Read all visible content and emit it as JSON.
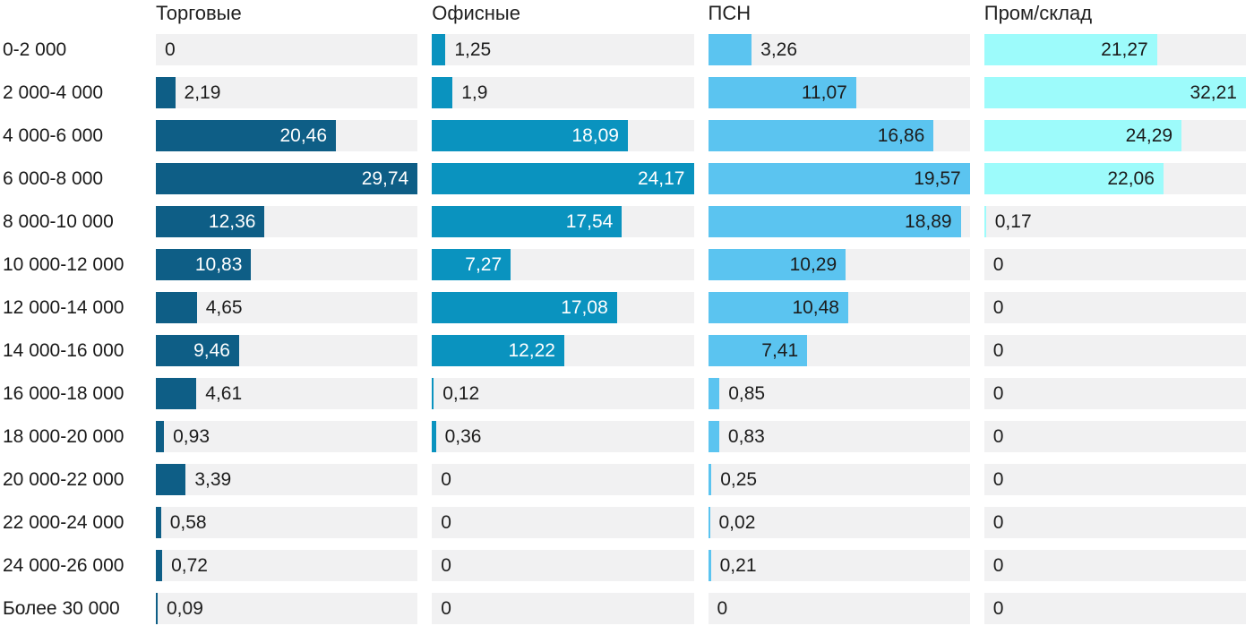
{
  "chart_data": {
    "type": "bar",
    "orientation": "horizontal",
    "title": "",
    "xlabel": "",
    "ylabel": "",
    "grid": false,
    "legend_position": "column-headers",
    "scale_note": "each column scaled so its own max value fills the full track width",
    "track_color": "#f1f1f2",
    "text_color": "#1c1c1c",
    "header_color": "#1f1f1f",
    "categories": [
      "0-2 000",
      "2 000-4 000",
      "4 000-6 000",
      "6 000-8 000",
      "8 000-10 000",
      "10 000-12 000",
      "12 000-14 000",
      "14 000-16 000",
      "16 000-18 000",
      "18 000-20 000",
      "20 000-22 000",
      "22 000-24 000",
      "24 000-26 000",
      "Более 30 000"
    ],
    "series": [
      {
        "name": "Торговые",
        "color": "#0e5e86",
        "inside_label_color": "#ffffff",
        "max": 29.74,
        "values": [
          0,
          2.19,
          20.46,
          29.74,
          12.36,
          10.83,
          4.65,
          9.46,
          4.61,
          0.93,
          3.39,
          0.58,
          0.72,
          0.09
        ],
        "labels": [
          "0",
          "2,19",
          "20,46",
          "29,74",
          "12,36",
          "10,83",
          "4,65",
          "9,46",
          "4,61",
          "0,93",
          "3,39",
          "0,58",
          "0,72",
          "0,09"
        ]
      },
      {
        "name": "Офисные",
        "color": "#0a93bf",
        "inside_label_color": "#ffffff",
        "max": 24.17,
        "values": [
          1.25,
          1.9,
          18.09,
          24.17,
          17.54,
          7.27,
          17.08,
          12.22,
          0.12,
          0.36,
          0,
          0,
          0,
          0
        ],
        "labels": [
          "1,25",
          "1,9",
          "18,09",
          "24,17",
          "17,54",
          "7,27",
          "17,08",
          "12,22",
          "0,12",
          "0,36",
          "0",
          "0",
          "0",
          "0"
        ]
      },
      {
        "name": "ПСН",
        "color": "#5bc4f0",
        "inside_label_color": "#1c1c1c",
        "max": 19.57,
        "values": [
          3.26,
          11.07,
          16.86,
          19.57,
          18.89,
          10.29,
          10.48,
          7.41,
          0.85,
          0.83,
          0.25,
          0.02,
          0.21,
          0
        ],
        "labels": [
          "3,26",
          "11,07",
          "16,86",
          "19,57",
          "18,89",
          "10,29",
          "10,48",
          "7,41",
          "0,85",
          "0,83",
          "0,25",
          "0,02",
          "0,21",
          "0"
        ]
      },
      {
        "name": "Пром/склад",
        "color": "#9dfbfb",
        "inside_label_color": "#1c1c1c",
        "max": 32.21,
        "values": [
          21.27,
          32.21,
          24.29,
          22.06,
          0.17,
          0,
          0,
          0,
          0,
          0,
          0,
          0,
          0,
          0
        ],
        "labels": [
          "21,27",
          "32,21",
          "24,29",
          "22,06",
          "0,17",
          "0",
          "0",
          "0",
          "0",
          "0",
          "0",
          "0",
          "0",
          "0"
        ]
      }
    ]
  }
}
